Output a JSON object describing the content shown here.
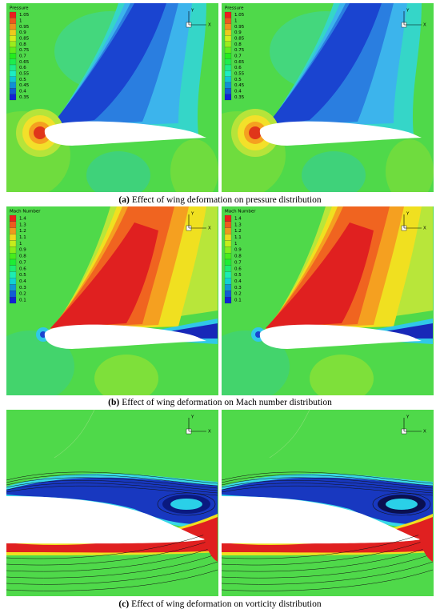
{
  "figure": {
    "axis_labels": {
      "x": "X",
      "y": "Y"
    },
    "rows": [
      {
        "legend_title": "Pressure",
        "legend_labels": [
          "1.05",
          "1",
          "0.95",
          "0.9",
          "0.85",
          "0.8",
          "0.75",
          "0.7",
          "0.65",
          "0.6",
          "0.55",
          "0.5",
          "0.45",
          "0.4",
          "0.35"
        ],
        "caption_label": "(a)",
        "caption_text": "Effect of wing deformation on pressure distribution"
      },
      {
        "legend_title": "Mach Number",
        "legend_labels": [
          "1.4",
          "1.3",
          "1.2",
          "1.1",
          "1",
          "0.9",
          "0.8",
          "0.7",
          "0.6",
          "0.5",
          "0.4",
          "0.3",
          "0.2",
          "0.1"
        ],
        "caption_label": "(b)",
        "caption_text": "Effect of wing deformation on Mach number distribution"
      },
      {
        "caption_label": "(c)",
        "caption_text": "Effect of wing deformation on vorticity distribution"
      }
    ]
  }
}
